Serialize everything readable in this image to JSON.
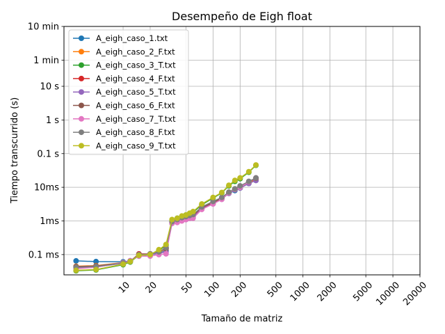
{
  "chart_data": {
    "type": "line",
    "title": "Desempeño de Eigh float",
    "xlabel": "Tamaño de matriz",
    "ylabel": "Tiempo transcurrido (s)",
    "xscale": "log",
    "yscale": "log",
    "xlim": [
      2.2,
      20000
    ],
    "ylim": [
      2.5e-05,
      600
    ],
    "grid": true,
    "legend": "upper left",
    "x_ticks": [
      {
        "value": 10,
        "label": "10"
      },
      {
        "value": 20,
        "label": "20"
      },
      {
        "value": 50,
        "label": "50"
      },
      {
        "value": 100,
        "label": "100"
      },
      {
        "value": 200,
        "label": "200"
      },
      {
        "value": 500,
        "label": "500"
      },
      {
        "value": 1000,
        "label": "1000"
      },
      {
        "value": 2000,
        "label": "2000"
      },
      {
        "value": 5000,
        "label": "5000"
      },
      {
        "value": 10000,
        "label": "10000"
      },
      {
        "value": 20000,
        "label": "20000"
      }
    ],
    "y_ticks": [
      {
        "value": 0.0001,
        "label": "0.1 ms"
      },
      {
        "value": 0.001,
        "label": "1ms"
      },
      {
        "value": 0.01,
        "label": "10ms"
      },
      {
        "value": 0.1,
        "label": "0.1 s"
      },
      {
        "value": 1,
        "label": "1 s"
      },
      {
        "value": 10,
        "label": "10 s"
      },
      {
        "value": 60,
        "label": "1 min"
      },
      {
        "value": 600,
        "label": "10 min"
      }
    ],
    "series": [
      {
        "name": "A_eigh_caso_1.txt",
        "color": "#1f77b4",
        "x": [
          3,
          5,
          10,
          12,
          15,
          20,
          25,
          30,
          35,
          40,
          45,
          50,
          55,
          60,
          75,
          100,
          125,
          150,
          175,
          200,
          250,
          300
        ],
        "y": [
          6.5e-05,
          6.2e-05,
          6.1e-05,
          6.5e-05,
          9e-05,
          0.0001,
          0.00011,
          0.00013,
          0.00085,
          0.001,
          0.0011,
          0.0012,
          0.0013,
          0.0014,
          0.0024,
          0.0035,
          0.0045,
          0.0066,
          0.008,
          0.0095,
          0.013,
          0.016
        ]
      },
      {
        "name": "A_eigh_caso_2_F.txt",
        "color": "#ff7f0e",
        "x": [
          3,
          5,
          10,
          12,
          15,
          20,
          25,
          30,
          35,
          40,
          45,
          50,
          55,
          60,
          75,
          100,
          125,
          150,
          175,
          200,
          250,
          300
        ],
        "y": [
          4.5e-05,
          4.7e-05,
          5.8e-05,
          6.2e-05,
          0.0001,
          0.000105,
          0.000115,
          0.00015,
          0.00095,
          0.0011,
          0.0012,
          0.0013,
          0.0014,
          0.0015,
          0.0025,
          0.0036,
          0.0048,
          0.0068,
          0.0085,
          0.01,
          0.014,
          0.017
        ]
      },
      {
        "name": "A_eigh_caso_3_T.txt",
        "color": "#2ca02c",
        "x": [
          3,
          5,
          10,
          12,
          15,
          20,
          25,
          30,
          35,
          40,
          45,
          50,
          55,
          60,
          75,
          100,
          125,
          150,
          175,
          200,
          250,
          300
        ],
        "y": [
          3.3e-05,
          3.5e-05,
          5e-05,
          6e-05,
          9.5e-05,
          0.0001,
          0.00013,
          0.00019,
          0.001,
          0.0012,
          0.0013,
          0.0015,
          0.0016,
          0.0018,
          0.003,
          0.0048,
          0.0068,
          0.011,
          0.015,
          0.018,
          0.028,
          0.045
        ]
      },
      {
        "name": "A_eigh_caso_4_F.txt",
        "color": "#d62728",
        "x": [
          3,
          5,
          10,
          12,
          15,
          20,
          25,
          30,
          35,
          40,
          45,
          50,
          55,
          60,
          75,
          100,
          125,
          150,
          175,
          200,
          250,
          300
        ],
        "y": [
          4.3e-05,
          4.5e-05,
          5.7e-05,
          6.3e-05,
          0.000105,
          0.000105,
          0.00012,
          0.00016,
          0.0009,
          0.00105,
          0.00115,
          0.00125,
          0.00135,
          0.00145,
          0.0024,
          0.0034,
          0.0046,
          0.0068,
          0.0088,
          0.0105,
          0.0145,
          0.018
        ]
      },
      {
        "name": "A_eigh_caso_5_T.txt",
        "color": "#9467bd",
        "x": [
          3,
          5,
          10,
          12,
          15,
          20,
          25,
          30,
          35,
          40,
          45,
          50,
          55,
          60,
          75,
          100,
          125,
          150,
          175,
          200,
          250,
          300
        ],
        "y": [
          4e-05,
          4.3e-05,
          5.5e-05,
          6.5e-05,
          9.5e-05,
          0.0001,
          0.00011,
          0.00012,
          0.00085,
          0.00095,
          0.00105,
          0.0011,
          0.0012,
          0.0013,
          0.0023,
          0.0032,
          0.0044,
          0.0066,
          0.0085,
          0.0095,
          0.013,
          0.016
        ]
      },
      {
        "name": "A_eigh_caso_6_F.txt",
        "color": "#8c564b",
        "x": [
          3,
          5,
          10,
          12,
          15,
          20,
          25,
          30,
          35,
          40,
          45,
          50,
          55,
          60,
          75,
          100,
          125,
          150,
          175,
          200,
          250,
          300
        ],
        "y": [
          4.4e-05,
          4.6e-05,
          5.7e-05,
          6.4e-05,
          0.0001,
          0.000105,
          0.00012,
          0.00015,
          0.0009,
          0.00105,
          0.0012,
          0.0013,
          0.0014,
          0.0015,
          0.0025,
          0.0035,
          0.0047,
          0.0069,
          0.0088,
          0.0105,
          0.0145,
          0.0185
        ]
      },
      {
        "name": "A_eigh_caso_7_T.txt",
        "color": "#e377c2",
        "x": [
          3,
          5,
          10,
          12,
          15,
          20,
          25,
          30,
          35,
          40,
          45,
          50,
          55,
          60,
          75,
          100,
          125,
          150,
          175,
          200,
          250,
          300
        ],
        "y": [
          3.8e-05,
          4.2e-05,
          5.8e-05,
          6.6e-05,
          9e-05,
          9e-05,
          0.0001,
          0.000105,
          0.00085,
          0.0009,
          0.001,
          0.0011,
          0.0012,
          0.0012,
          0.0022,
          0.0032,
          0.0044,
          0.0068,
          0.0088,
          0.01,
          0.0145,
          0.019
        ]
      },
      {
        "name": "A_eigh_caso_8_F.txt",
        "color": "#7f7f7f",
        "x": [
          3,
          5,
          10,
          12,
          15,
          20,
          25,
          30,
          35,
          40,
          45,
          50,
          55,
          60,
          75,
          100,
          125,
          150,
          175,
          200,
          250,
          300
        ],
        "y": [
          4.2e-05,
          4.4e-05,
          5.6e-05,
          6.3e-05,
          0.0001,
          0.000105,
          0.00012,
          0.00016,
          0.00095,
          0.0011,
          0.00125,
          0.00135,
          0.00145,
          0.00155,
          0.0026,
          0.0038,
          0.005,
          0.0072,
          0.009,
          0.011,
          0.015,
          0.019
        ]
      },
      {
        "name": "A_eigh_caso_9_T.txt",
        "color": "#bcbd22",
        "x": [
          3,
          5,
          10,
          12,
          15,
          20,
          25,
          30,
          35,
          40,
          45,
          50,
          55,
          60,
          75,
          100,
          125,
          150,
          175,
          200,
          250,
          300
        ],
        "y": [
          3.4e-05,
          3.6e-05,
          5.2e-05,
          6.2e-05,
          9.5e-05,
          0.0001,
          0.00014,
          0.0002,
          0.0011,
          0.0012,
          0.0014,
          0.0015,
          0.0017,
          0.0019,
          0.0032,
          0.005,
          0.007,
          0.0115,
          0.016,
          0.019,
          0.029,
          0.046
        ]
      }
    ]
  }
}
